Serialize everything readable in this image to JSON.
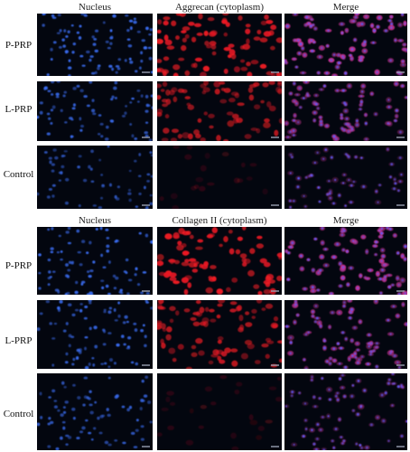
{
  "figure": {
    "block_a": {
      "col_headers": [
        "Nucleus",
        "Aggrecan (cytoplasm)",
        "Merge"
      ],
      "rows": [
        "P-PRP",
        "L-PRP",
        "Control"
      ]
    },
    "block_b": {
      "col_headers": [
        "Nucleus",
        "Collagen II (cytoplasm)",
        "Merge"
      ],
      "rows": [
        "P-PRP",
        "L-PRP",
        "Control"
      ]
    }
  },
  "colors": {
    "nucleus": "#2a5bd8",
    "stain": "#e0141e",
    "merge": "#c02a8a",
    "background": "#03060f"
  }
}
